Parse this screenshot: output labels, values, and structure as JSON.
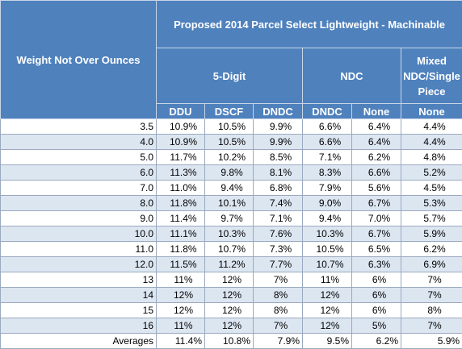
{
  "header": {
    "row_label": "Weight Not Over Ounces",
    "title": "Proposed 2014 Parcel Select Lightweight - Machinable",
    "groups": [
      "5-Digit",
      "NDC",
      "Mixed NDC/Single Piece"
    ],
    "subcolumns": [
      "DDU",
      "DSCF",
      "DNDC",
      "DNDC",
      "None",
      "None"
    ]
  },
  "rows": [
    {
      "weight": "3.5",
      "values": [
        "10.9%",
        "10.5%",
        "9.9%",
        "6.6%",
        "6.4%",
        "4.4%"
      ]
    },
    {
      "weight": "4.0",
      "values": [
        "10.9%",
        "10.5%",
        "9.9%",
        "6.6%",
        "6.4%",
        "4.4%"
      ]
    },
    {
      "weight": "5.0",
      "values": [
        "11.7%",
        "10.2%",
        "8.5%",
        "7.1%",
        "6.2%",
        "4.8%"
      ]
    },
    {
      "weight": "6.0",
      "values": [
        "11.3%",
        "9.8%",
        "8.1%",
        "8.3%",
        "6.6%",
        "5.2%"
      ]
    },
    {
      "weight": "7.0",
      "values": [
        "11.0%",
        "9.4%",
        "6.8%",
        "7.9%",
        "5.6%",
        "4.5%"
      ]
    },
    {
      "weight": "8.0",
      "values": [
        "11.8%",
        "10.1%",
        "7.4%",
        "9.0%",
        "6.7%",
        "5.3%"
      ]
    },
    {
      "weight": "9.0",
      "values": [
        "11.4%",
        "9.7%",
        "7.1%",
        "9.4%",
        "7.0%",
        "5.7%"
      ]
    },
    {
      "weight": "10.0",
      "values": [
        "11.1%",
        "10.3%",
        "7.6%",
        "10.3%",
        "6.7%",
        "5.9%"
      ]
    },
    {
      "weight": "11.0",
      "values": [
        "11.8%",
        "10.7%",
        "7.3%",
        "10.5%",
        "6.5%",
        "6.2%"
      ]
    },
    {
      "weight": "12.0",
      "values": [
        "11.5%",
        "11.2%",
        "7.7%",
        "10.7%",
        "6.3%",
        "6.9%"
      ]
    },
    {
      "weight": "13",
      "values": [
        "11%",
        "12%",
        "7%",
        "11%",
        "6%",
        "7%"
      ]
    },
    {
      "weight": "14",
      "values": [
        "12%",
        "12%",
        "8%",
        "12%",
        "6%",
        "7%"
      ]
    },
    {
      "weight": "15",
      "values": [
        "12%",
        "12%",
        "8%",
        "12%",
        "6%",
        "8%"
      ]
    },
    {
      "weight": "16",
      "values": [
        "11%",
        "12%",
        "7%",
        "12%",
        "5%",
        "7%"
      ]
    }
  ],
  "averages": {
    "label": "Averages",
    "values": [
      "11.4%",
      "10.8%",
      "7.9%",
      "9.5%",
      "6.2%",
      "5.9%"
    ]
  }
}
